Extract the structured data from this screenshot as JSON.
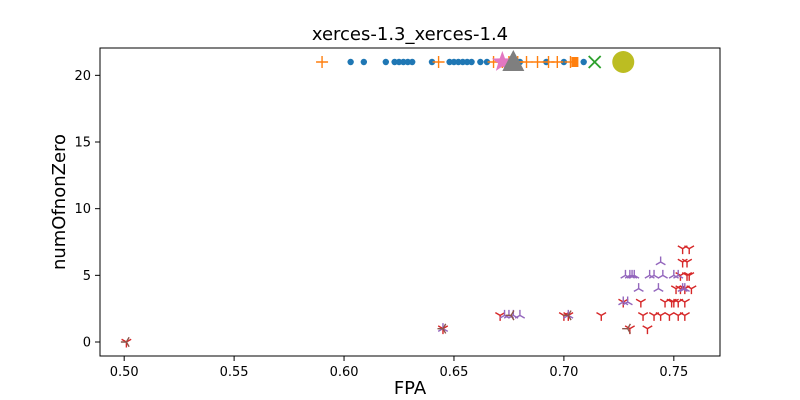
{
  "chart_data": {
    "type": "scatter",
    "title": "xerces-1.3_xerces-1.4",
    "xlabel": "FPA",
    "ylabel": "numOfnonZero",
    "xlim": [
      0.489,
      0.771
    ],
    "ylim": [
      -1.05,
      22.05
    ],
    "xticks": [
      "0.50",
      "0.55",
      "0.60",
      "0.65",
      "0.70",
      "0.75"
    ],
    "yticks": [
      "0",
      "5",
      "10",
      "15",
      "20"
    ],
    "grid": false,
    "colors": [
      "#1f77b4",
      "#ff7f0e",
      "#2ca02c",
      "#d62728",
      "#9467bd",
      "#8c564b",
      "#e377c2",
      "#7f7f7f",
      "#bcbd22"
    ],
    "series": [
      {
        "marker": "dot",
        "color": "#1f77b4",
        "points": [
          [
            0.603,
            21
          ],
          [
            0.609,
            21
          ],
          [
            0.619,
            21
          ],
          [
            0.623,
            21
          ],
          [
            0.625,
            21
          ],
          [
            0.627,
            21
          ],
          [
            0.629,
            21
          ],
          [
            0.631,
            21
          ],
          [
            0.64,
            21
          ],
          [
            0.648,
            21
          ],
          [
            0.65,
            21
          ],
          [
            0.652,
            21
          ],
          [
            0.654,
            21
          ],
          [
            0.656,
            21
          ],
          [
            0.658,
            21
          ],
          [
            0.662,
            21
          ],
          [
            0.665,
            21
          ],
          [
            0.68,
            21
          ],
          [
            0.692,
            21
          ],
          [
            0.7,
            21
          ],
          [
            0.709,
            21
          ]
        ]
      },
      {
        "marker": "plus",
        "color": "#ff7f0e",
        "points": [
          [
            0.59,
            21
          ],
          [
            0.643,
            21
          ],
          [
            0.668,
            21
          ],
          [
            0.672,
            21
          ],
          [
            0.675,
            21
          ],
          [
            0.679,
            21
          ],
          [
            0.683,
            21
          ],
          [
            0.688,
            21
          ],
          [
            0.693,
            21
          ],
          [
            0.697,
            21
          ],
          [
            0.703,
            21
          ]
        ]
      },
      {
        "marker": "x",
        "color": "#2ca02c",
        "points": [
          [
            0.714,
            21
          ]
        ]
      },
      {
        "marker": "tri_down",
        "color": "#d62728",
        "points": [
          [
            0.501,
            0
          ],
          [
            0.645,
            1
          ],
          [
            0.671,
            2
          ],
          [
            0.7,
            2
          ],
          [
            0.702,
            2
          ],
          [
            0.717,
            2
          ],
          [
            0.727,
            3
          ],
          [
            0.73,
            1
          ],
          [
            0.735,
            3
          ],
          [
            0.736,
            2
          ],
          [
            0.738,
            1
          ],
          [
            0.741,
            2
          ],
          [
            0.744,
            2
          ],
          [
            0.746,
            3
          ],
          [
            0.748,
            2
          ],
          [
            0.749,
            3
          ],
          [
            0.75,
            3
          ],
          [
            0.751,
            4
          ],
          [
            0.752,
            2
          ],
          [
            0.752,
            3
          ],
          [
            0.753,
            4
          ],
          [
            0.753,
            5
          ],
          [
            0.754,
            6
          ],
          [
            0.754,
            7
          ],
          [
            0.755,
            3
          ],
          [
            0.755,
            4
          ],
          [
            0.756,
            5
          ],
          [
            0.756,
            6
          ],
          [
            0.757,
            7
          ],
          [
            0.757,
            5
          ],
          [
            0.758,
            4
          ],
          [
            0.755,
            2
          ]
        ]
      },
      {
        "marker": "tri_up",
        "color": "#9467bd",
        "points": [
          [
            0.645,
            1
          ],
          [
            0.673,
            2
          ],
          [
            0.675,
            2
          ],
          [
            0.677,
            2
          ],
          [
            0.68,
            2
          ],
          [
            0.702,
            2
          ],
          [
            0.727,
            3
          ],
          [
            0.728,
            5
          ],
          [
            0.729,
            3
          ],
          [
            0.73,
            5
          ],
          [
            0.731,
            5
          ],
          [
            0.732,
            5
          ],
          [
            0.734,
            4
          ],
          [
            0.739,
            5
          ],
          [
            0.741,
            5
          ],
          [
            0.743,
            4
          ],
          [
            0.744,
            6
          ],
          [
            0.745,
            5
          ],
          [
            0.75,
            5
          ],
          [
            0.752,
            5
          ],
          [
            0.754,
            4
          ],
          [
            0.755,
            4
          ]
        ]
      },
      {
        "marker": "tri_left",
        "color": "#8c564b",
        "points": [
          [
            0.501,
            0
          ],
          [
            0.645,
            1
          ],
          [
            0.676,
            2
          ],
          [
            0.702,
            2
          ],
          [
            0.729,
            1
          ]
        ]
      },
      {
        "marker": "star",
        "color": "#e377c2",
        "points": [
          [
            0.672,
            21
          ]
        ]
      },
      {
        "marker": "triangle",
        "color": "#7f7f7f",
        "points": [
          [
            0.677,
            21
          ]
        ]
      },
      {
        "marker": "big_dot",
        "color": "#bcbd22",
        "points": [
          [
            0.727,
            21
          ]
        ]
      },
      {
        "marker": "square",
        "color": "#ff7f0e",
        "points": [
          [
            0.705,
            21
          ]
        ]
      }
    ]
  }
}
